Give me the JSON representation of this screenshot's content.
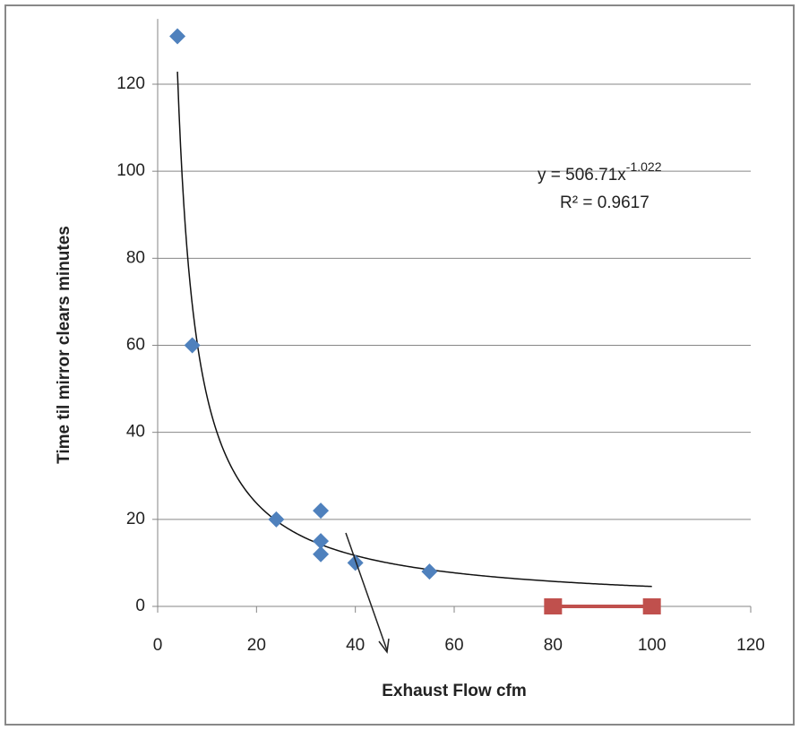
{
  "chart_data": {
    "type": "scatter",
    "x_label": "Exhaust Flow cfm",
    "y_label": "Time til mirror clears minutes",
    "series": [
      {
        "color": "#4f81bd",
        "marker": "diamond",
        "x": [
          4,
          7,
          24,
          33,
          33,
          33,
          40,
          55
        ],
        "values": [
          131,
          60,
          20,
          22,
          15,
          12,
          10,
          8
        ]
      },
      {
        "color": "#c0504d",
        "marker": "square",
        "line": true,
        "x": [
          80,
          100
        ],
        "values": [
          0,
          0
        ]
      }
    ],
    "trendline": {
      "type": "power",
      "coefficient": 506.71,
      "exponent": -1.022,
      "equation": "y = 506.71x",
      "equation_exponent": "-1.022",
      "r_squared": "R² = 0.9617"
    },
    "xlim": [
      0,
      120
    ],
    "xticks": [
      0,
      20,
      40,
      60,
      80,
      100,
      120
    ],
    "ylim": [
      0,
      135
    ],
    "yticks": [
      0,
      20,
      40,
      60,
      80,
      100,
      120
    ],
    "grid": true
  }
}
